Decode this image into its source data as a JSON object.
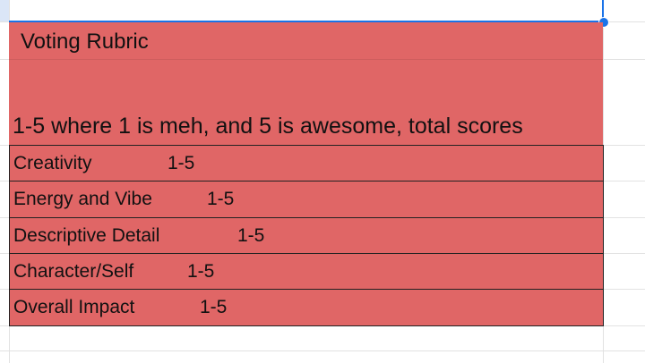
{
  "sheet": {
    "fill_color": "#e06666",
    "selection_color": "#1a73e8",
    "title": "Voting Rubric",
    "description": "1-5 where 1 is meh, and 5 is awesome,   total scores",
    "criteria": [
      {
        "label": "Creativity",
        "score": "1-5"
      },
      {
        "label": "Energy and Vibe",
        "score": "1-5"
      },
      {
        "label": "Descriptive Detail",
        "score": "1-5"
      },
      {
        "label": "Character/Self",
        "score": "1-5"
      },
      {
        "label": "Overall Impact",
        "score": "1-5"
      }
    ]
  }
}
